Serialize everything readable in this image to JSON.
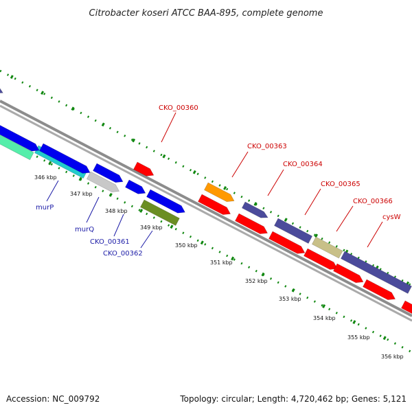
{
  "title": "Citrobacter koseri ATCC BAA-895, complete genome",
  "footer": {
    "accession": "Accession: NC_009792",
    "topology": "Topology: circular; Length: 4,720,462 bp; Genes: 5,121"
  },
  "ticks": [
    "346 kbp",
    "347 kbp",
    "348 kbp",
    "349 kbp",
    "350 kbp",
    "351 kbp",
    "352 kbp",
    "353 kbp",
    "354 kbp",
    "355 kbp",
    "356 kbp"
  ],
  "gene_labels": {
    "CKO_00360": "CKO_00360",
    "CKO_00363": "CKO_00363",
    "CKO_00364": "CKO_00364",
    "CKO_00365": "CKO_00365",
    "CKO_00366": "CKO_00366",
    "cysW": "cysW",
    "murP": "murP",
    "murQ": "murQ",
    "CKO_00361": "CKO_00361",
    "CKO_00362": "CKO_00362"
  },
  "colors": {
    "red": "#ff0000",
    "blue": "#0000ee",
    "navy": "#4b4b9b",
    "orange": "#ff9900",
    "olive": "#6b8e23",
    "khaki": "#c8c088",
    "cyan": "#22cccc",
    "lightcyan": "#55eeaa",
    "gray": "#c8c8c8",
    "backbone": "#999999",
    "tickgreen": "#118811"
  }
}
